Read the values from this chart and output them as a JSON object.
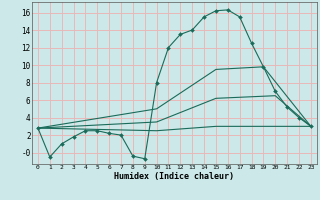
{
  "background_color": "#cce8e8",
  "grid_color": "#e8b8b8",
  "line_color": "#1a6b5a",
  "xlabel": "Humidex (Indice chaleur)",
  "xlim": [
    -0.5,
    23.5
  ],
  "ylim": [
    -1.3,
    17.2
  ],
  "yticks": [
    0,
    2,
    4,
    6,
    8,
    10,
    12,
    14,
    16
  ],
  "ytick_labels": [
    "-0",
    "2",
    "4",
    "6",
    "8",
    "10",
    "12",
    "14",
    "16"
  ],
  "xticks": [
    0,
    1,
    2,
    3,
    4,
    5,
    6,
    7,
    8,
    9,
    10,
    11,
    12,
    13,
    14,
    15,
    16,
    17,
    18,
    19,
    20,
    21,
    22,
    23
  ],
  "series": [
    {
      "x": [
        0,
        1,
        2,
        3,
        4,
        5,
        6,
        7,
        8,
        9,
        10,
        11,
        12,
        13,
        14,
        15,
        16,
        17,
        18,
        19,
        20,
        21,
        22,
        23
      ],
      "y": [
        2.8,
        -0.5,
        1.0,
        1.8,
        2.5,
        2.5,
        2.2,
        2.0,
        -0.4,
        -0.7,
        8.0,
        12.0,
        13.5,
        14.0,
        15.5,
        16.2,
        16.3,
        15.5,
        12.5,
        9.8,
        7.0,
        5.2,
        4.0,
        3.0
      ],
      "marker": true
    },
    {
      "x": [
        0,
        10,
        15,
        19,
        23
      ],
      "y": [
        2.8,
        5.0,
        9.5,
        9.8,
        3.0
      ],
      "marker": false
    },
    {
      "x": [
        0,
        10,
        15,
        20,
        23
      ],
      "y": [
        2.8,
        3.5,
        6.2,
        6.5,
        3.0
      ],
      "marker": false
    },
    {
      "x": [
        0,
        10,
        15,
        23
      ],
      "y": [
        2.8,
        2.5,
        3.0,
        3.0
      ],
      "marker": false
    }
  ]
}
